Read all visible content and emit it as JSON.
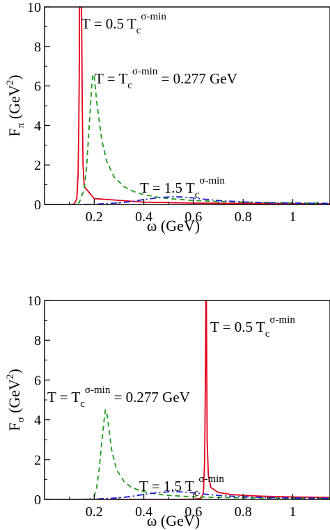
{
  "colors": {
    "t05": "#e3001b",
    "t10": "#1f9a1f",
    "t15": "#1f1fd0",
    "axis": "#000000",
    "background": "#ffffff"
  },
  "chart_data": [
    {
      "type": "line",
      "xlabel": "ω (GeV)",
      "ylabel": "Fπ (GeV²)",
      "ylabel_parts": {
        "base": "F",
        "sub": "π",
        "unit_open": " (GeV",
        "sup": "2",
        "unit_close": ")"
      },
      "xlim": [
        0.0,
        1.15
      ],
      "ylim": [
        0,
        10
      ],
      "xticks": [
        "0.2",
        "0.4",
        "0.6",
        "0.8",
        "1"
      ],
      "yticks": [
        "0",
        "2",
        "4",
        "6",
        "8",
        "10"
      ],
      "grid": false,
      "annotations": [
        {
          "id": "t05",
          "prefix": "T = 0.5 T",
          "sub": "c",
          "sup": "σ-min",
          "suffix": ""
        },
        {
          "id": "t10",
          "prefix": "T =  T",
          "sub": "c",
          "sup": "σ-min",
          "suffix": " = 0.277 GeV"
        },
        {
          "id": "t15",
          "prefix": "T = 1.5 T",
          "sub": "c",
          "sup": "σ-min",
          "suffix": ""
        }
      ],
      "series": [
        {
          "id": "t05",
          "style": "solid",
          "x": [
            0.0,
            0.05,
            0.1,
            0.12,
            0.13,
            0.135,
            0.138,
            0.14,
            0.141,
            0.143,
            0.146,
            0.149,
            0.152,
            0.155,
            0.16,
            0.2,
            0.4,
            0.6,
            0.8,
            1.0,
            1.15
          ],
          "y": [
            0,
            0,
            0,
            0.02,
            0.3,
            1.5,
            4.0,
            7.0,
            10.0,
            10.0,
            10.0,
            10.0,
            5.0,
            2.0,
            0.9,
            0.3,
            0.12,
            0.07,
            0.05,
            0.04,
            0.03
          ]
        },
        {
          "id": "t10",
          "style": "dashed",
          "x": [
            0.0,
            0.12,
            0.14,
            0.16,
            0.17,
            0.18,
            0.19,
            0.195,
            0.2,
            0.21,
            0.23,
            0.25,
            0.28,
            0.32,
            0.36,
            0.4,
            0.45,
            0.5,
            0.6,
            0.7,
            0.8,
            1.0,
            1.15
          ],
          "y": [
            0,
            0,
            0.1,
            0.8,
            2.0,
            4.0,
            6.0,
            6.6,
            6.5,
            5.2,
            3.3,
            2.2,
            1.4,
            0.9,
            0.65,
            0.5,
            0.38,
            0.3,
            0.2,
            0.15,
            0.12,
            0.08,
            0.06
          ]
        },
        {
          "id": "t15",
          "style": "dashdot",
          "x": [
            0.0,
            0.15,
            0.2,
            0.3,
            0.35,
            0.4,
            0.45,
            0.5,
            0.52,
            0.55,
            0.6,
            0.65,
            0.7,
            0.8,
            0.9,
            1.0,
            1.15
          ],
          "y": [
            0,
            0,
            0.01,
            0.08,
            0.15,
            0.25,
            0.33,
            0.38,
            0.39,
            0.38,
            0.33,
            0.26,
            0.2,
            0.13,
            0.09,
            0.07,
            0.05
          ]
        }
      ]
    },
    {
      "type": "line",
      "xlabel": "ω (GeV)",
      "ylabel": "Fσ (GeV²)",
      "ylabel_parts": {
        "base": "F",
        "sub": "σ",
        "unit_open": " (GeV",
        "sup": "2",
        "unit_close": ")"
      },
      "xlim": [
        0.0,
        1.15
      ],
      "ylim": [
        0,
        10
      ],
      "xticks": [
        "0.2",
        "0.4",
        "0.6",
        "0.8",
        "1"
      ],
      "yticks": [
        "0",
        "2",
        "4",
        "6",
        "8",
        "10"
      ],
      "grid": false,
      "annotations": [
        {
          "id": "t05",
          "prefix": "T = 0.5 T",
          "sub": "c",
          "sup": "σ-min",
          "suffix": ""
        },
        {
          "id": "t10",
          "prefix": "T =  T",
          "sub": "c",
          "sup": "σ-min",
          "suffix": " = 0.277 GeV"
        },
        {
          "id": "t15",
          "prefix": "T = 1.5 T",
          "sub": "c",
          "sup": "σ-min",
          "suffix": ""
        }
      ],
      "series": [
        {
          "id": "t05",
          "style": "solid",
          "x": [
            0.0,
            0.3,
            0.5,
            0.6,
            0.63,
            0.64,
            0.645,
            0.648,
            0.65,
            0.652,
            0.655,
            0.66,
            0.67,
            0.7,
            0.75,
            0.8,
            0.9,
            1.0,
            1.15
          ],
          "y": [
            0,
            0,
            0,
            0.01,
            0.05,
            0.3,
            2.0,
            6.0,
            10.0,
            10.0,
            3.0,
            1.2,
            0.6,
            0.35,
            0.25,
            0.2,
            0.15,
            0.12,
            0.1
          ]
        },
        {
          "id": "t10",
          "style": "dashed",
          "x": [
            0.0,
            0.18,
            0.2,
            0.21,
            0.22,
            0.23,
            0.24,
            0.245,
            0.25,
            0.26,
            0.27,
            0.29,
            0.32,
            0.35,
            0.4,
            0.45,
            0.5,
            0.6,
            0.7,
            0.8,
            1.0,
            1.15
          ],
          "y": [
            0,
            0,
            0.15,
            0.6,
            1.5,
            2.8,
            4.0,
            4.5,
            4.4,
            3.5,
            2.5,
            1.5,
            0.9,
            0.6,
            0.38,
            0.27,
            0.2,
            0.13,
            0.1,
            0.08,
            0.06,
            0.05
          ]
        },
        {
          "id": "t15",
          "style": "dashdot",
          "x": [
            0.0,
            0.15,
            0.2,
            0.3,
            0.35,
            0.4,
            0.45,
            0.5,
            0.52,
            0.55,
            0.6,
            0.65,
            0.7,
            0.8,
            0.9,
            1.0,
            1.15
          ],
          "y": [
            0,
            0,
            0.01,
            0.08,
            0.15,
            0.25,
            0.33,
            0.38,
            0.39,
            0.38,
            0.33,
            0.26,
            0.2,
            0.13,
            0.09,
            0.07,
            0.05
          ]
        }
      ]
    }
  ]
}
